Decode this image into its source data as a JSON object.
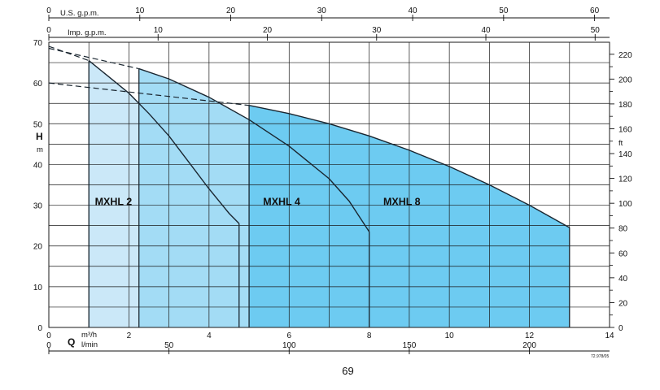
{
  "page_number": "69",
  "colors": {
    "band_1": "#cbe8f8",
    "band_2": "#a3dcf5",
    "band_3": "#6dcbf1",
    "grid": "#1a1a1a"
  },
  "chart_data": {
    "type": "area",
    "title": "",
    "axes": {
      "x_bottom_primary": {
        "label_letter": "Q",
        "unit": "m³/h",
        "min": 0,
        "max": 14,
        "ticks": [
          0,
          2,
          4,
          6,
          8,
          10,
          12,
          14
        ]
      },
      "x_bottom_secondary": {
        "unit": "l/min",
        "ticks": [
          0,
          50,
          100,
          150,
          200
        ]
      },
      "x_top_1": {
        "unit": "U.S. g.p.m.",
        "ticks": [
          0,
          10,
          20,
          30,
          40,
          50,
          60
        ]
      },
      "x_top_2": {
        "unit": "Imp. g.p.m.",
        "ticks": [
          0,
          10,
          20,
          30,
          40,
          50
        ]
      },
      "y_left": {
        "label_letter": "H",
        "unit": "m",
        "min": 0,
        "max": 70,
        "ticks": [
          0,
          10,
          20,
          30,
          40,
          50,
          60,
          70
        ]
      },
      "y_right": {
        "unit": "ft",
        "ticks": [
          0,
          20,
          40,
          60,
          80,
          100,
          120,
          140,
          160,
          180,
          200,
          220
        ]
      }
    },
    "grid": true,
    "series": [
      {
        "name": "MXHL 2",
        "q_min": 1,
        "q_max": 4.75,
        "curve": [
          [
            1,
            65.5
          ],
          [
            1.5,
            61.5
          ],
          [
            2,
            57.5
          ],
          [
            2.5,
            52.5
          ],
          [
            3,
            47
          ],
          [
            3.5,
            40.5
          ],
          [
            4,
            34
          ],
          [
            4.5,
            28
          ],
          [
            4.75,
            25.5
          ]
        ],
        "extension": [
          [
            0,
            69
          ],
          [
            1,
            65.5
          ]
        ]
      },
      {
        "name": "MXHL 4",
        "q_min": 2.25,
        "q_max": 8,
        "curve": [
          [
            2.25,
            63.5
          ],
          [
            3,
            61
          ],
          [
            4,
            56.5
          ],
          [
            5,
            51
          ],
          [
            6,
            44.5
          ],
          [
            7,
            36.5
          ],
          [
            7.5,
            31
          ],
          [
            8,
            23.5
          ]
        ],
        "extension": [
          [
            0,
            68.5
          ],
          [
            2.25,
            63.5
          ]
        ]
      },
      {
        "name": "MXHL 8",
        "q_min": 5,
        "q_max": 13,
        "curve": [
          [
            5,
            54.5
          ],
          [
            6,
            52.5
          ],
          [
            7,
            50
          ],
          [
            8,
            47
          ],
          [
            9,
            43.5
          ],
          [
            10,
            39.5
          ],
          [
            11,
            35
          ],
          [
            12,
            30
          ],
          [
            13,
            24.5
          ]
        ],
        "extension": [
          [
            0,
            60
          ],
          [
            5,
            54.5
          ]
        ]
      }
    ],
    "annotations": [
      "72.978/05"
    ]
  }
}
